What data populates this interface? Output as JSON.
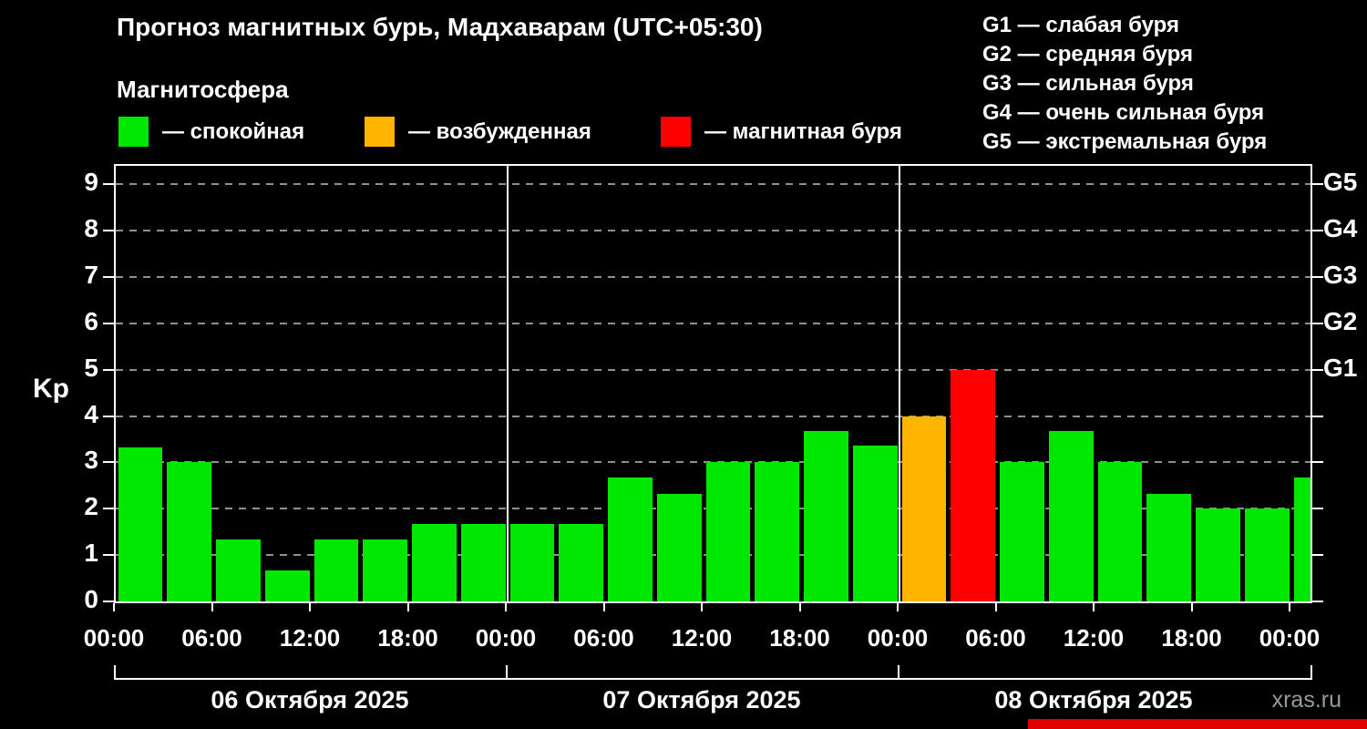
{
  "header": {
    "title": "Прогноз магнитных бурь, Мадхаварам (UTC+05:30)",
    "subtitle": "Магнитосфера"
  },
  "legend": {
    "items": [
      {
        "label": "— спокойная",
        "color": "#00e800",
        "state": "quiet"
      },
      {
        "label": "— возбужденная",
        "color": "#ffb400",
        "state": "active"
      },
      {
        "label": "— магнитная буря",
        "color": "#ff0000",
        "state": "storm"
      }
    ]
  },
  "storm_scale": [
    "G1 — слабая буря",
    "G2 — средняя буря",
    "G3 — сильная буря",
    "G4 — очень сильная буря",
    "G5 — экстремальная буря"
  ],
  "chart_data": {
    "type": "bar",
    "ylabel": "Kp",
    "ylim": [
      0,
      9.4
    ],
    "yticks": [
      0,
      1,
      2,
      3,
      4,
      5,
      6,
      7,
      8,
      9
    ],
    "right_axis": [
      {
        "kp": 5,
        "label": "G1"
      },
      {
        "kp": 6,
        "label": "G2"
      },
      {
        "kp": 7,
        "label": "G3"
      },
      {
        "kp": 8,
        "label": "G4"
      },
      {
        "kp": 9,
        "label": "G5"
      }
    ],
    "time_ticks": [
      "00:00",
      "06:00",
      "12:00",
      "18:00"
    ],
    "end_tick": "00:00",
    "days": [
      "06 Октября 2025",
      "07 Октября 2025",
      "08 Октября 2025"
    ],
    "bars_per_day": 8,
    "interval_hours": 3,
    "values": [
      3.33,
      3.0,
      1.33,
      0.67,
      1.33,
      1.33,
      1.67,
      1.67,
      1.67,
      1.67,
      2.67,
      2.33,
      3.0,
      3.0,
      3.67,
      3.37,
      4.0,
      5.0,
      3.0,
      3.67,
      3.0,
      2.33,
      2.0,
      2.0
    ],
    "overflow_value": 2.67,
    "colors": {
      "quiet": "#00e800",
      "active": "#ffb400",
      "storm": "#ff0000"
    },
    "thresholds": {
      "active": 4,
      "storm": 5
    },
    "grid": "dashed-horizontal"
  },
  "footer": {
    "watermark": "xras.ru"
  }
}
